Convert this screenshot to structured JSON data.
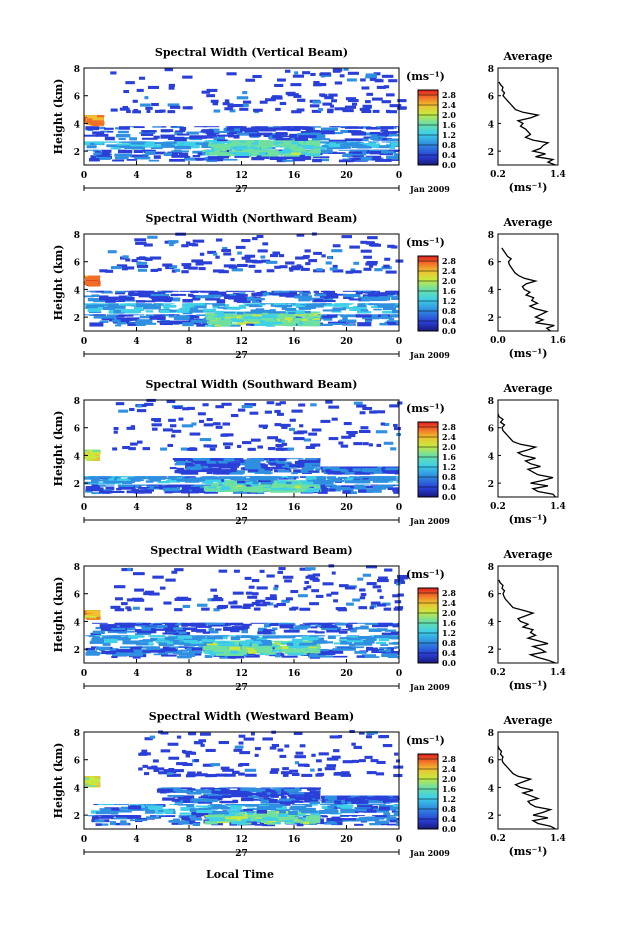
{
  "figure": {
    "xlabel": "Local Time",
    "date_label": "Jan 2009",
    "day_label": "27",
    "colorbar_unit": "(ms⁻¹)",
    "average_title": "Average",
    "average_xlabel": "(ms⁻¹)",
    "height_label": "Height (km)"
  },
  "chart_data": [
    {
      "type": "heatmap",
      "title": "Spectral Width (Vertical Beam)",
      "xlabel": "Local Time",
      "ylabel": "Height (km)",
      "xticks": [
        "0",
        "4",
        "8",
        "12",
        "16",
        "20",
        "0"
      ],
      "xlim": [
        0,
        24
      ],
      "yticks": [
        "2",
        "4",
        "6",
        "8"
      ],
      "ylim": [
        1,
        8
      ],
      "colorbar": {
        "ticks": [
          "0.0",
          "0.4",
          "0.8",
          "1.2",
          "1.6",
          "2.0",
          "2.4",
          "2.8"
        ],
        "range": [
          0,
          3.0
        ]
      },
      "layers": [
        {
          "x": [
            0,
            24
          ],
          "y": [
            1.2,
            2.1
          ],
          "level": 0.5
        },
        {
          "x": [
            0,
            24
          ],
          "y": [
            2.1,
            2.7
          ],
          "level": 0.9
        },
        {
          "x": [
            9,
            18
          ],
          "y": [
            1.6,
            2.8
          ],
          "level": 1.4
        },
        {
          "x": [
            0,
            24
          ],
          "y": [
            2.7,
            3.8
          ],
          "level": 0.5
        },
        {
          "x": [
            0,
            1.5
          ],
          "y": [
            3.8,
            4.6
          ],
          "level": 2.6
        }
      ],
      "sparse": {
        "x": [
          2,
          24
        ],
        "y": [
          4.8,
          8
        ],
        "level": 0.3
      },
      "average": {
        "title": "Average",
        "xlabel": "(ms⁻¹)",
        "xticks": [
          "0.2",
          "1.4"
        ],
        "xlim": [
          0.2,
          1.4
        ],
        "yticks": [
          "2",
          "4",
          "6",
          "8"
        ],
        "ylim": [
          1,
          8
        ],
        "height": [
          1.0,
          1.2,
          1.4,
          1.6,
          1.8,
          2.0,
          2.2,
          2.4,
          2.6,
          2.8,
          3.0,
          3.2,
          3.4,
          3.6,
          3.8,
          4.0,
          4.2,
          4.4,
          4.6,
          4.8,
          5.0,
          5.2,
          5.4,
          5.6,
          5.8,
          6.0,
          6.2,
          6.4,
          6.6,
          6.8,
          7.0
        ],
        "width": [
          1.35,
          1.2,
          1.3,
          0.95,
          1.15,
          0.9,
          1.05,
          1.1,
          1.2,
          0.9,
          0.75,
          0.85,
          0.8,
          0.75,
          0.65,
          0.7,
          0.6,
          0.85,
          1.0,
          0.7,
          0.55,
          0.5,
          0.45,
          0.4,
          0.35,
          0.3,
          0.33,
          0.28,
          0.3,
          0.25,
          0.22
        ]
      }
    },
    {
      "type": "heatmap",
      "title": "Spectral Width (Northward Beam)",
      "xlabel": "Local Time",
      "ylabel": "Height (km)",
      "xticks": [
        "0",
        "4",
        "8",
        "12",
        "16",
        "20",
        "0"
      ],
      "xlim": [
        0,
        24
      ],
      "yticks": [
        "2",
        "4",
        "6",
        "8"
      ],
      "ylim": [
        1,
        8
      ],
      "colorbar": {
        "ticks": [
          "0.0",
          "0.4",
          "0.8",
          "1.2",
          "1.6",
          "2.0",
          "2.4",
          "2.8"
        ],
        "range": [
          0,
          3.0
        ]
      },
      "layers": [
        {
          "x": [
            0,
            24
          ],
          "y": [
            1.3,
            2.2
          ],
          "level": 0.6
        },
        {
          "x": [
            9,
            18
          ],
          "y": [
            1.3,
            2.4
          ],
          "level": 1.5
        },
        {
          "x": [
            0,
            24
          ],
          "y": [
            2.2,
            3.0
          ],
          "level": 0.9
        },
        {
          "x": [
            0,
            24
          ],
          "y": [
            3.0,
            3.9
          ],
          "level": 0.5
        },
        {
          "x": [
            0,
            1.2
          ],
          "y": [
            4.2,
            5.0
          ],
          "level": 2.6
        }
      ],
      "sparse": {
        "x": [
          1,
          24
        ],
        "y": [
          5.2,
          8
        ],
        "level": 0.3
      },
      "average": {
        "title": "Average",
        "xlabel": "(ms⁻¹)",
        "xticks": [
          "0.0",
          "1.6"
        ],
        "xlim": [
          0,
          1.6
        ],
        "yticks": [
          "2",
          "4",
          "6",
          "8"
        ],
        "ylim": [
          1,
          8
        ],
        "height": [
          1.0,
          1.2,
          1.4,
          1.6,
          1.8,
          2.0,
          2.2,
          2.4,
          2.6,
          2.8,
          3.0,
          3.2,
          3.4,
          3.6,
          3.8,
          4.0,
          4.2,
          4.4,
          4.6,
          4.8,
          5.0,
          5.2,
          5.4,
          5.6,
          5.8,
          6.0,
          6.2,
          6.4,
          6.6,
          6.8,
          7.0
        ],
        "width": [
          1.4,
          1.3,
          1.5,
          1.0,
          1.2,
          1.0,
          1.15,
          1.3,
          1.0,
          0.85,
          1.05,
          0.9,
          0.95,
          0.75,
          0.85,
          0.7,
          0.65,
          0.75,
          1.0,
          0.7,
          0.55,
          0.45,
          0.4,
          0.35,
          0.3,
          0.28,
          0.35,
          0.25,
          0.2,
          0.15,
          0.1
        ]
      }
    },
    {
      "type": "heatmap",
      "title": "Spectral Width (Southward Beam)",
      "xlabel": "Local Time",
      "ylabel": "Height (km)",
      "xticks": [
        "0",
        "4",
        "8",
        "12",
        "16",
        "20",
        "0"
      ],
      "xlim": [
        0,
        24
      ],
      "yticks": [
        "2",
        "4",
        "6",
        "8"
      ],
      "ylim": [
        1,
        8
      ],
      "colorbar": {
        "ticks": [
          "0.0",
          "0.4",
          "0.8",
          "1.2",
          "1.6",
          "2.0",
          "2.4",
          "2.8"
        ],
        "range": [
          0,
          3.0
        ]
      },
      "layers": [
        {
          "x": [
            0,
            24
          ],
          "y": [
            1.2,
            1.9
          ],
          "level": 0.5
        },
        {
          "x": [
            9,
            18
          ],
          "y": [
            1.3,
            2.2
          ],
          "level": 1.4
        },
        {
          "x": [
            0,
            24
          ],
          "y": [
            1.9,
            2.5
          ],
          "level": 0.8
        },
        {
          "x": [
            6.5,
            18
          ],
          "y": [
            2.6,
            3.8
          ],
          "level": 0.5
        },
        {
          "x": [
            18,
            24
          ],
          "y": [
            2.6,
            3.2
          ],
          "level": 0.5
        },
        {
          "x": [
            0,
            1.2
          ],
          "y": [
            3.6,
            4.4
          ],
          "level": 1.9
        }
      ],
      "sparse": {
        "x": [
          2,
          24
        ],
        "y": [
          4.4,
          8
        ],
        "level": 0.3
      },
      "average": {
        "title": "Average",
        "xlabel": "(ms⁻¹)",
        "xticks": [
          "0.2",
          "1.4"
        ],
        "xlim": [
          0.2,
          1.4
        ],
        "yticks": [
          "2",
          "4",
          "6",
          "8"
        ],
        "ylim": [
          1,
          8
        ],
        "height": [
          1.0,
          1.2,
          1.4,
          1.6,
          1.8,
          2.0,
          2.2,
          2.4,
          2.6,
          2.8,
          3.0,
          3.2,
          3.4,
          3.6,
          3.8,
          4.0,
          4.2,
          4.4,
          4.6,
          4.8,
          5.0,
          5.2,
          5.4,
          5.6,
          5.8,
          6.0,
          6.2,
          6.4,
          6.6,
          6.8,
          7.0
        ],
        "width": [
          1.35,
          1.3,
          1.0,
          0.9,
          1.2,
          0.85,
          1.1,
          1.3,
          1.0,
          0.9,
          0.8,
          1.05,
          0.85,
          0.75,
          0.95,
          0.7,
          0.6,
          0.8,
          0.95,
          0.65,
          0.5,
          0.45,
          0.4,
          0.35,
          0.3,
          0.28,
          0.33,
          0.25,
          0.3,
          0.22,
          0.2
        ]
      }
    },
    {
      "type": "heatmap",
      "title": "Spectral Width (Eastward Beam)",
      "xlabel": "Local Time",
      "ylabel": "Height (km)",
      "xticks": [
        "0",
        "4",
        "8",
        "12",
        "16",
        "20",
        "0"
      ],
      "xlim": [
        0,
        24
      ],
      "yticks": [
        "2",
        "4",
        "6",
        "8"
      ],
      "ylim": [
        1,
        8
      ],
      "colorbar": {
        "ticks": [
          "0.0",
          "0.4",
          "0.8",
          "1.2",
          "1.6",
          "2.0",
          "2.4",
          "2.8"
        ],
        "range": [
          0,
          3.0
        ]
      },
      "layers": [
        {
          "x": [
            0,
            24
          ],
          "y": [
            1.3,
            2.2
          ],
          "level": 0.6
        },
        {
          "x": [
            9,
            18
          ],
          "y": [
            1.5,
            2.6
          ],
          "level": 1.5
        },
        {
          "x": [
            0,
            24
          ],
          "y": [
            2.2,
            3.0
          ],
          "level": 0.9
        },
        {
          "x": [
            0,
            24
          ],
          "y": [
            3.0,
            3.9
          ],
          "level": 0.5
        },
        {
          "x": [
            0,
            1.2
          ],
          "y": [
            4.1,
            4.8
          ],
          "level": 2.3
        }
      ],
      "sparse": {
        "x": [
          2,
          24
        ],
        "y": [
          4.8,
          8
        ],
        "level": 0.3
      },
      "average": {
        "title": "Average",
        "xlabel": "(ms⁻¹)",
        "xticks": [
          "0.2",
          "1.4"
        ],
        "xlim": [
          0.2,
          1.4
        ],
        "yticks": [
          "2",
          "4",
          "6",
          "8"
        ],
        "ylim": [
          1,
          8
        ],
        "height": [
          1.0,
          1.2,
          1.4,
          1.6,
          1.8,
          2.0,
          2.2,
          2.4,
          2.6,
          2.8,
          3.0,
          3.2,
          3.4,
          3.6,
          3.8,
          4.0,
          4.2,
          4.4,
          4.6,
          4.8,
          5.0,
          5.2,
          5.4,
          5.6,
          5.8,
          6.0,
          6.2,
          6.4,
          6.6,
          6.8,
          7.0
        ],
        "width": [
          1.35,
          1.2,
          1.0,
          0.85,
          1.15,
          1.05,
          0.9,
          1.2,
          1.0,
          0.8,
          0.95,
          0.85,
          0.9,
          0.7,
          0.8,
          0.65,
          0.6,
          0.75,
          0.9,
          0.7,
          0.5,
          0.45,
          0.4,
          0.35,
          0.32,
          0.3,
          0.33,
          0.28,
          0.3,
          0.24,
          0.22
        ]
      }
    },
    {
      "type": "heatmap",
      "title": "Spectral Width (Westward Beam)",
      "xlabel": "Local Time",
      "ylabel": "Height (km)",
      "xticks": [
        "0",
        "4",
        "8",
        "12",
        "16",
        "20",
        "0"
      ],
      "xlim": [
        0,
        24
      ],
      "yticks": [
        "2",
        "4",
        "6",
        "8"
      ],
      "ylim": [
        1,
        8
      ],
      "colorbar": {
        "ticks": [
          "0.0",
          "0.4",
          "0.8",
          "1.2",
          "1.6",
          "2.0",
          "2.4",
          "2.8"
        ],
        "range": [
          0,
          3.0
        ]
      },
      "layers": [
        {
          "x": [
            0,
            24
          ],
          "y": [
            1.2,
            2.0
          ],
          "level": 0.5
        },
        {
          "x": [
            9,
            18
          ],
          "y": [
            1.3,
            2.3
          ],
          "level": 1.5
        },
        {
          "x": [
            0,
            24
          ],
          "y": [
            2.0,
            2.8
          ],
          "level": 0.8
        },
        {
          "x": [
            5.5,
            18
          ],
          "y": [
            2.8,
            4.0
          ],
          "level": 0.5
        },
        {
          "x": [
            18,
            24
          ],
          "y": [
            2.8,
            3.4
          ],
          "level": 0.5
        },
        {
          "x": [
            0,
            1.2
          ],
          "y": [
            4.0,
            4.8
          ],
          "level": 1.9
        }
      ],
      "sparse": {
        "x": [
          4,
          24
        ],
        "y": [
          4.8,
          8
        ],
        "level": 0.3
      },
      "average": {
        "title": "Average",
        "xlabel": "(ms⁻¹)",
        "xticks": [
          "0.2",
          "1.4"
        ],
        "xlim": [
          0.2,
          1.4
        ],
        "yticks": [
          "2",
          "4",
          "6",
          "8"
        ],
        "ylim": [
          1,
          8
        ],
        "height": [
          1.0,
          1.2,
          1.4,
          1.6,
          1.8,
          2.0,
          2.2,
          2.4,
          2.6,
          2.8,
          3.0,
          3.2,
          3.4,
          3.6,
          3.8,
          4.0,
          4.2,
          4.4,
          4.6,
          4.8,
          5.0,
          5.2,
          5.4,
          5.6,
          5.8,
          6.0,
          6.2,
          6.4,
          6.6,
          6.8,
          7.0
        ],
        "width": [
          1.35,
          1.25,
          1.0,
          0.9,
          1.2,
          0.9,
          1.1,
          1.25,
          0.95,
          0.85,
          0.8,
          1.0,
          0.85,
          0.7,
          0.9,
          0.65,
          0.55,
          0.7,
          0.85,
          0.6,
          0.5,
          0.45,
          0.4,
          0.35,
          0.3,
          0.28,
          0.3,
          0.25,
          0.27,
          0.22,
          0.2
        ]
      }
    }
  ]
}
